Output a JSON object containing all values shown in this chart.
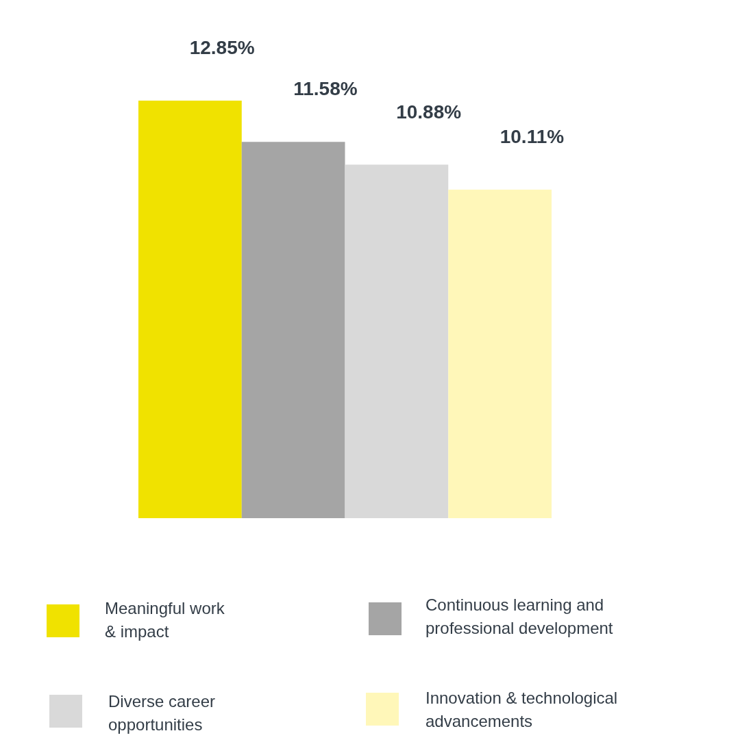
{
  "chart_data": {
    "type": "bar",
    "categories": [
      null
    ],
    "legend": "bottom",
    "data_labels": true,
    "series": [
      {
        "name": "Meaningful work & impact",
        "color": "#f0e200",
        "values": [
          12.85
        ],
        "value_labels": [
          "12.85%"
        ]
      },
      {
        "name": "Continuous learning and professional development",
        "color": "#a5a5a5",
        "values": [
          11.58
        ],
        "value_labels": [
          "11.58%"
        ]
      },
      {
        "name": "Diverse career opportunities",
        "color": "#d9d9d9",
        "values": [
          10.88
        ],
        "value_labels": [
          "10.88%"
        ]
      },
      {
        "name": "Innovation & technological advancements",
        "color": "#fff7b9",
        "values": [
          10.11
        ],
        "value_labels": [
          "10.11%"
        ]
      }
    ]
  }
}
